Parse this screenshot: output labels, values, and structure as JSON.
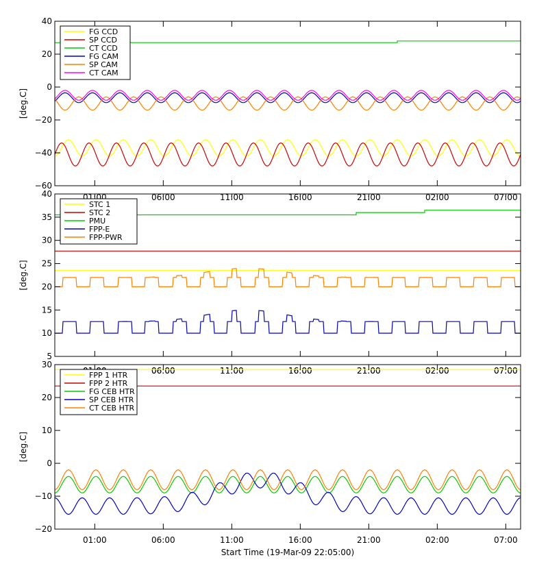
{
  "chart_data": [
    {
      "type": "line",
      "panel": "top",
      "ylabel": "[deg.C]",
      "ylim": [
        -60,
        40
      ],
      "yticks": [
        "40",
        "20",
        "0",
        "−20",
        "−40",
        "−60"
      ],
      "xticks": [
        "01:00",
        "06:00",
        "11:00",
        "16:00",
        "21:00",
        "02:00",
        "07:00"
      ],
      "legend": [
        {
          "name": "FG CCD",
          "color": "#ffff00"
        },
        {
          "name": "SP CCD",
          "color": "#cc0000"
        },
        {
          "name": "CT CCD",
          "color": "#00cc00"
        },
        {
          "name": "FG CAM",
          "color": "#0000cc"
        },
        {
          "name": "SP CAM",
          "color": "#ff8000"
        },
        {
          "name": "CT CAM",
          "color": "#ff00ff"
        }
      ],
      "series": [
        {
          "name": "FG CCD",
          "color": "#ffff00",
          "shape": "sine",
          "mean": -37,
          "amp": 5,
          "period_h": 2.0,
          "phase": 0.5
        },
        {
          "name": "SP CCD",
          "color": "#cc0000",
          "shape": "sine",
          "mean": -41,
          "amp": 7,
          "period_h": 2.0,
          "phase": 0.0
        },
        {
          "name": "CT CCD",
          "color": "#00cc00",
          "shape": "step",
          "points": [
            [
              0,
              27
            ],
            [
              25,
              27
            ],
            [
              25,
              28
            ],
            [
              34,
              28
            ]
          ]
        },
        {
          "name": "FG CAM",
          "color": "#0000cc",
          "shape": "sine",
          "mean": -6.5,
          "amp": 3,
          "period_h": 2.0,
          "phase": 0.25
        },
        {
          "name": "SP CAM",
          "color": "#ff8000",
          "shape": "sine",
          "mean": -10,
          "amp": 4,
          "period_h": 2.0,
          "phase": 1.25
        },
        {
          "name": "CT CAM",
          "color": "#ff00ff",
          "shape": "sine",
          "mean": -5,
          "amp": 3,
          "period_h": 2.0,
          "phase": 0.25
        }
      ]
    },
    {
      "type": "line",
      "panel": "middle",
      "ylabel": "[deg.C]",
      "ylim": [
        5,
        40
      ],
      "yticks": [
        "40",
        "35",
        "30",
        "25",
        "20",
        "15",
        "10",
        "5"
      ],
      "xticks": [
        "01:00",
        "06:00",
        "11:00",
        "16:00",
        "21:00",
        "02:00",
        "07:00"
      ],
      "legend": [
        {
          "name": "STC 1",
          "color": "#ffff00"
        },
        {
          "name": "STC 2",
          "color": "#cc0000"
        },
        {
          "name": "PMU",
          "color": "#00cc00"
        },
        {
          "name": "FPP-E",
          "color": "#0000cc"
        },
        {
          "name": "FPP-PWR",
          "color": "#ff8000"
        }
      ],
      "series": [
        {
          "name": "STC 1",
          "color": "#ffff00",
          "shape": "const",
          "value": 23.5
        },
        {
          "name": "STC 2",
          "color": "#cc0000",
          "shape": "const",
          "value": 27.7
        },
        {
          "name": "PMU",
          "color": "#00cc00",
          "shape": "step",
          "points": [
            [
              0,
              35.5
            ],
            [
              22,
              35.5
            ],
            [
              22,
              36
            ],
            [
              27,
              36
            ],
            [
              27,
              36.5
            ],
            [
              34,
              36.5
            ]
          ]
        },
        {
          "name": "FPP-E",
          "color": "#0000cc",
          "shape": "square",
          "base": 10,
          "top": 12.5,
          "bump": 2.5,
          "period_h": 2.0
        },
        {
          "name": "FPP-PWR",
          "color": "#ff8000",
          "shape": "square",
          "base": 20,
          "top": 22,
          "bump": 2,
          "period_h": 2.0
        }
      ]
    },
    {
      "type": "line",
      "panel": "bottom",
      "ylabel": "[deg.C]",
      "ylim": [
        -20,
        30
      ],
      "yticks": [
        "30",
        "20",
        "10",
        "0",
        "−10",
        "−20"
      ],
      "xticks": [
        "01:00",
        "06:00",
        "11:00",
        "16:00",
        "21:00",
        "02:00",
        "07:00"
      ],
      "xtitle": "Start Time (19-Mar-09 22:05:00)",
      "legend": [
        {
          "name": "FPP 1 HTR",
          "color": "#ffff00"
        },
        {
          "name": "FPP 2 HTR",
          "color": "#cc0000"
        },
        {
          "name": "FG CEB HTR",
          "color": "#00cc00"
        },
        {
          "name": "SP CEB HTR",
          "color": "#0000cc"
        },
        {
          "name": "CT CEB HTR",
          "color": "#ff8000"
        }
      ],
      "series": [
        {
          "name": "FPP 1 HTR",
          "color": "#ffff00",
          "shape": "const",
          "value": 28.5
        },
        {
          "name": "FPP 2 HTR",
          "color": "#cc0000",
          "shape": "const",
          "value": 23.5
        },
        {
          "name": "FG CEB HTR",
          "color": "#00cc00",
          "shape": "sine",
          "mean": -6.5,
          "amp": 2.5,
          "period_h": 2.0,
          "phase": 0.5
        },
        {
          "name": "SP CEB HTR",
          "color": "#0000cc",
          "shape": "sine_drift",
          "mean": -13,
          "amp": 2.5,
          "period_h": 2.0,
          "phase": 1.5,
          "bump_center": 15,
          "bump_width": 4,
          "bump_height": 8
        },
        {
          "name": "CT CEB HTR",
          "color": "#ff8000",
          "shape": "sine",
          "mean": -5,
          "amp": 3,
          "period_h": 2.0,
          "phase": 0.5
        }
      ]
    }
  ]
}
